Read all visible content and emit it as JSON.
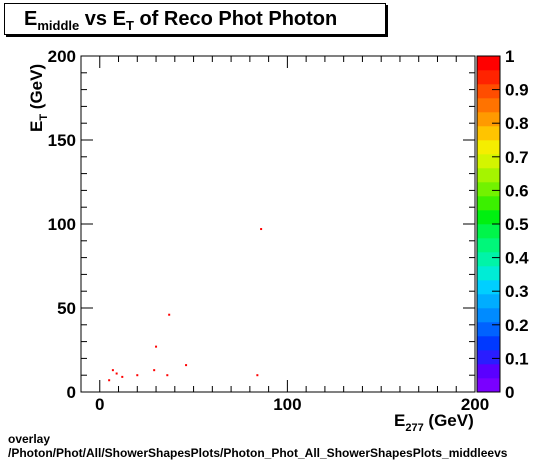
{
  "title": {
    "main": "E",
    "sub1": "middle",
    "mid": " vs E",
    "sub2": "T",
    "rest": " of Reco Phot Photon"
  },
  "footer": {
    "line1": "overlay",
    "line2": "/Photon/Phot/All/ShowerShapesPlots/Photon_Phot_All_ShowerShapesPlots_middleevs"
  },
  "chart_data": {
    "type": "scatter",
    "xlabel": {
      "main": "E",
      "sub": "277",
      "unit": " (GeV)"
    },
    "ylabel": {
      "main": "E",
      "sub": "T",
      "unit": " (GeV)"
    },
    "xlim": [
      -10,
      200
    ],
    "ylim": [
      0,
      200
    ],
    "x_ticks": [
      0,
      100,
      200
    ],
    "y_ticks": [
      0,
      50,
      100,
      150,
      200
    ],
    "z_ticks": [
      "0",
      "0.1",
      "0.2",
      "0.3",
      "0.4",
      "0.5",
      "0.6",
      "0.7",
      "0.8",
      "0.9",
      "1"
    ],
    "palette": [
      "#7a00ff",
      "#5a00ff",
      "#2a1dff",
      "#0039ff",
      "#0062ff",
      "#008bff",
      "#00adff",
      "#00cfff",
      "#00ecd6",
      "#00f4a8",
      "#00f77a",
      "#00f54a",
      "#00f010",
      "#3bf000",
      "#72f200",
      "#a5f400",
      "#d3f500",
      "#f5ee00",
      "#ffc400",
      "#ff9a00",
      "#ff7300",
      "#ff4d00",
      "#ff2300",
      "#ff0000"
    ],
    "point_color": "#ff0000",
    "points": [
      {
        "x": 5,
        "y": 7
      },
      {
        "x": 7,
        "y": 13
      },
      {
        "x": 9,
        "y": 11
      },
      {
        "x": 12,
        "y": 9
      },
      {
        "x": 20,
        "y": 10
      },
      {
        "x": 29,
        "y": 13
      },
      {
        "x": 30,
        "y": 27
      },
      {
        "x": 36,
        "y": 10
      },
      {
        "x": 37,
        "y": 46
      },
      {
        "x": 46,
        "y": 16
      },
      {
        "x": 84,
        "y": 10
      },
      {
        "x": 86,
        "y": 97
      }
    ]
  }
}
